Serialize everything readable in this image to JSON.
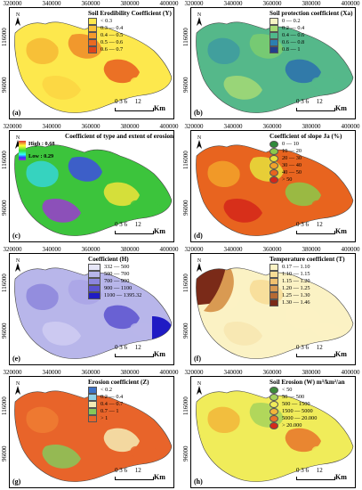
{
  "x_ticks": [
    "320000",
    "340000",
    "360000",
    "380000",
    "400000"
  ],
  "y_ticks": [
    "116000",
    "96000"
  ],
  "scale": {
    "numbers": "0 3 6     12",
    "unit": "Km"
  },
  "panels": [
    {
      "label": "(a)",
      "title": "Soil Erodibility Coefficient (Y)",
      "items": [
        {
          "text": "< 0.3",
          "color": "#fde84d"
        },
        {
          "text": "0.3 — 0.4",
          "color": "#f8c23a"
        },
        {
          "text": "0.4 — 0.5",
          "color": "#f39a2c"
        },
        {
          "text": "0.5 — 0.6",
          "color": "#ea6a22"
        },
        {
          "text": "0.6 — 0.7",
          "color": "#e0451b"
        }
      ],
      "colors": [
        "#fde84d",
        "#f6b835",
        "#ef8a28",
        "#e85c1f",
        "#fbd543"
      ]
    },
    {
      "label": "(b)",
      "title": "Soil protection coefficient (Xa)",
      "items": [
        {
          "text": "0 — 0.2",
          "color": "#f6f3c4"
        },
        {
          "text": "0.2 — 0.4",
          "color": "#a6d974"
        },
        {
          "text": "0.4 — 0.6",
          "color": "#4fb98b"
        },
        {
          "text": "0.6 — 0.8",
          "color": "#2b7fb0"
        },
        {
          "text": "0.8 — 1",
          "color": "#233e8c"
        }
      ],
      "colors": [
        "#55b88a",
        "#3e9aa0",
        "#7ccc6e",
        "#2c6fae",
        "#a6d974"
      ]
    },
    {
      "label": "(c)",
      "title": "Coefficient of type and extent of erosion (phi)",
      "gradient": {
        "high": "High : 0.68",
        "low": "Low : 0.29"
      },
      "colors": [
        "#3cc43c",
        "#35d6d6",
        "#3d4de0",
        "#f0e43a",
        "#9a3ccf"
      ]
    },
    {
      "label": "(d)",
      "title": "Coefficient of slope Ja (%)",
      "items": [
        {
          "text": "0 — 10",
          "color": "#2f8a3a"
        },
        {
          "text": "10 — 20",
          "color": "#8cc84a"
        },
        {
          "text": "20 — 30",
          "color": "#e6e13c"
        },
        {
          "text": "30 — 40",
          "color": "#f2a22a"
        },
        {
          "text": "40 — 50",
          "color": "#e8641f"
        },
        {
          "text": "> 50",
          "color": "#d4261a"
        }
      ],
      "colors": [
        "#e8641f",
        "#f2a22a",
        "#e6e13c",
        "#8cc84a",
        "#d4261a"
      ]
    },
    {
      "label": "(e)",
      "title": "Coefficient (H)",
      "items": [
        {
          "text": "332 — 500",
          "color": "#e6e6f7"
        },
        {
          "text": "500 — 700",
          "color": "#b8b6ea"
        },
        {
          "text": "700 — 900",
          "color": "#8c86dc"
        },
        {
          "text": "900 — 1100",
          "color": "#5a52cf"
        },
        {
          "text": "1100 — 1395.32",
          "color": "#1f1bc4"
        }
      ],
      "colors": [
        "#b8b6ea",
        "#8c86dc",
        "#a9a5e6",
        "#5a52cf",
        "#cfcdf2"
      ]
    },
    {
      "label": "(f)",
      "title": "Temperature coefficient (T)",
      "items": [
        {
          "text": "0.17 — 1.10",
          "color": "#fbf2c4"
        },
        {
          "text": "1.10 — 1.15",
          "color": "#f7dc95"
        },
        {
          "text": "1.15 — 1.20",
          "color": "#f0c070"
        },
        {
          "text": "1.20 — 1.25",
          "color": "#d99a52"
        },
        {
          "text": "1.25 — 1.30",
          "color": "#b66a34"
        },
        {
          "text": "1.30 — 1.46",
          "color": "#7a2a18"
        }
      ],
      "colors": [
        "#fbf2c4",
        "#fbf2c4",
        "#f7dc95",
        "#fbf2c4",
        "#f7e6b0"
      ]
    },
    {
      "label": "(g)",
      "title": "Erosion coefficient (Z)",
      "items": [
        {
          "text": "< 0.2",
          "color": "#3d73c9"
        },
        {
          "text": "0.2 — 0.4",
          "color": "#8fd0e6"
        },
        {
          "text": "0.4 — 0.7",
          "color": "#f4ecb5"
        },
        {
          "text": "0.7 — 1",
          "color": "#86c85a"
        },
        {
          "text": "> 1",
          "color": "#e8642a"
        }
      ],
      "colors": [
        "#e8642a",
        "#ef7c33",
        "#e8642a",
        "#f4ecb5",
        "#86c85a"
      ]
    },
    {
      "label": "(h)",
      "title": "Soil Erosion (W) m³/km²/an",
      "items": [
        {
          "text": "< 50",
          "color": "#3d8c3a"
        },
        {
          "text": "50 — 500",
          "color": "#a6d35c"
        },
        {
          "text": "500 — 1500",
          "color": "#f0ec5a"
        },
        {
          "text": "1500 — 5000",
          "color": "#f2b63a"
        },
        {
          "text": "5000 — 20.000",
          "color": "#e8742a"
        },
        {
          "text": "> 20.000",
          "color": "#d62a1a"
        }
      ],
      "colors": [
        "#f0ec5a",
        "#f2b63a",
        "#a6d35c",
        "#e8742a",
        "#f0ec5a"
      ]
    }
  ]
}
